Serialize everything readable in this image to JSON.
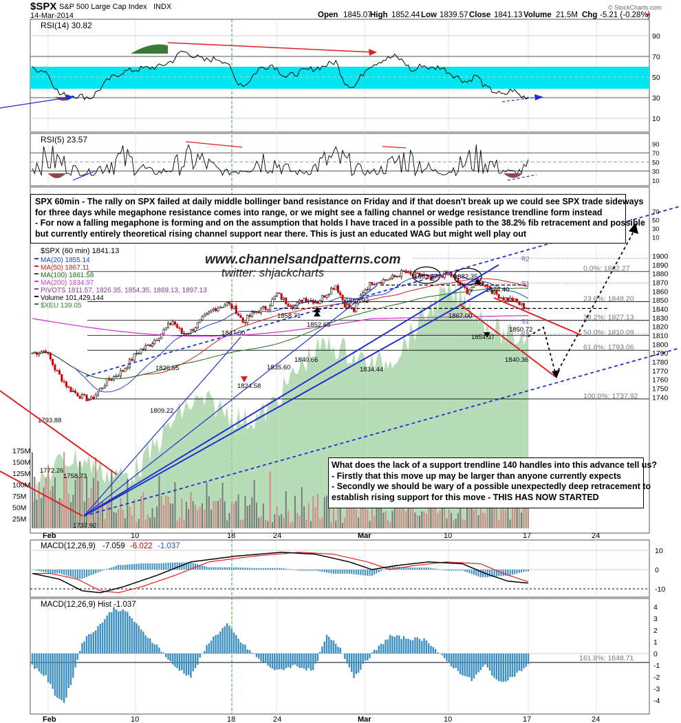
{
  "header": {
    "symbol": "$SPX",
    "name": "S&P 500 Large Cap Index",
    "exchange": "INDX",
    "date": "14-Mar-2014",
    "open_label": "Open",
    "open": "1845.07",
    "high_label": "High",
    "high": "1852.44",
    "low_label": "Low",
    "low": "1839.57",
    "close_label": "Close",
    "close": "1841.13",
    "volume_label": "Volume",
    "volume": "21.5M",
    "chg_label": "Chg",
    "chg": "-5.21 (-0.28%)",
    "watermark": "© StockCharts.com"
  },
  "colors": {
    "band": "#00e5ee",
    "bull": "#000000",
    "bear": "#cc0000",
    "ma20": "#1f3fcf",
    "ma50": "#cc1f1f",
    "ma100": "#1a6b1a",
    "ma200": "#d23bd2",
    "xeu_fill": "#9fd09f",
    "trend_blue": "#1f2fd0",
    "trend_red": "#e02020",
    "hist": "#3b8ec2"
  },
  "rsi14": {
    "legend": "RSI(14) 30.82",
    "ticks": [
      "90",
      "70",
      "50",
      "30",
      "10"
    ]
  },
  "rsi5": {
    "legend": "RSI(5) 23.57",
    "ticks": [
      "90",
      "70",
      "50",
      "30",
      "10"
    ]
  },
  "main": {
    "legend_title": "$SPX (60 min) 1841.13",
    "legend": [
      {
        "text": "MA(20) 1855.14",
        "color": "#1f3fcf"
      },
      {
        "text": "MA(50) 1867.11",
        "color": "#cc1f1f"
      },
      {
        "text": "MA(100) 1861.58",
        "color": "#1a6b1a"
      },
      {
        "text": "MA(200) 1834.97",
        "color": "#d23bd2"
      },
      {
        "text": "PIVOTS 1811.57, 1826.35, 1854.35, 1869.13, 1897.13",
        "color": "#8b3b9b"
      },
      {
        "text": "Volume 101,429,144",
        "color": "#000000"
      },
      {
        "text": "$XEU 139.05",
        "color": "#2e8b2e"
      }
    ],
    "price_ticks": [
      "1900",
      "1890",
      "1880",
      "1870",
      "1860",
      "1850",
      "1840",
      "1830",
      "1820",
      "1810",
      "1800",
      "1790",
      "1780",
      "1770",
      "1760",
      "1750",
      "1740"
    ],
    "side_ticks": [
      "70",
      "50",
      "30",
      "10"
    ],
    "volume_ticks": [
      "175M",
      "150M",
      "125M",
      "100M",
      "75M",
      "50M",
      "25M"
    ],
    "watermark_line1": "www.channelsandpatterns.com",
    "watermark_line2": "twitter: shjackcharts",
    "price_labels": [
      "1883.57",
      "1882.35",
      "1874.40",
      "1867.92",
      "1867.00",
      "1858.71",
      "1852.65",
      "1850.72",
      "1854.37",
      "1847.50",
      "1840.66",
      "1840.36",
      "1835.60",
      "1834.44",
      "1826.55",
      "1824.58",
      "1809.22",
      "1793.88",
      "1772.26",
      "1758.73",
      "1737.92"
    ],
    "fib_labels": [
      "0.0%: 1882.27",
      "23.6%: 1848.20",
      "38.2%: 1827.13",
      "50.0%: 1810.09",
      "61.8%: 1793.06",
      "100.0%: 1737.92"
    ],
    "pivot_labels": [
      "R2",
      "R1",
      "S1",
      "S2"
    ]
  },
  "annotations": {
    "top_box": [
      "SPX 60min - The rally on SPX failed at daily middle bollinger band resistance on Friday and if that doesn't break up we could see SPX trade sideways",
      "for three days while megaphone resistance comes into range, or we might see a falling channel or wedge resistance trendline form instead",
      "- For now a falling megaphone is forming and on the assumption that holds I have traced in a possible path to the 38.2% fib retracement and possible",
      "but currently entirely theoretical rising channel support near there.  This is just an educated WAG but might well play out"
    ],
    "bottom_box": [
      "What does the lack of a support trendline 140 handles into this advance tell us?",
      "- Firstly that this move up may be larger than anyone currently expects",
      "- Secondly we should be wary of a possible unexpectedly deep retracement to",
      "establish rising support for this move - THIS HAS NOW STARTED"
    ]
  },
  "macd": {
    "legend_prefix": "MACD(12,26,9)",
    "legend_values": [
      "-7.059",
      "-6.022",
      "-1.037"
    ],
    "ticks": [
      "10",
      "0",
      "-10"
    ]
  },
  "hist": {
    "legend": "MACD(12,26,9) Hist -1.037",
    "ticks": [
      "4",
      "3",
      "2",
      "1",
      "0",
      "-1",
      "-2",
      "-3",
      "-4"
    ],
    "fib_label": "161.8%: 1648.71"
  },
  "x_axis": {
    "labels": [
      "Feb",
      "10",
      "18",
      "24",
      "Mar",
      "10",
      "17",
      "24"
    ]
  }
}
